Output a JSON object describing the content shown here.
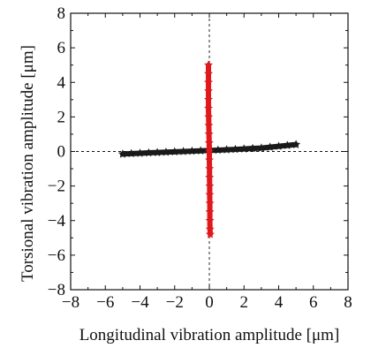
{
  "chart_data": {
    "type": "scatter",
    "xlabel": "Longitudinal vibration amplitude [μm]",
    "ylabel": "Torsional vibration amplitude [μm]",
    "xlim": [
      -8,
      8
    ],
    "ylim": [
      -8,
      8
    ],
    "xticks": [
      "−8",
      "−6",
      "−4",
      "−2",
      "0",
      "2",
      "4",
      "6",
      "8"
    ],
    "yticks": [
      "8",
      "6",
      "4",
      "2",
      "0",
      "−2",
      "−4",
      "−6",
      "−8"
    ],
    "grid": false,
    "zero_lines": "dashed",
    "series": [
      {
        "color": "#1a1a1a",
        "marker": "star",
        "x": [
          -5.0,
          -4.5,
          -4.0,
          -3.5,
          -3.0,
          -2.5,
          -2.0,
          -1.5,
          -1.0,
          -0.5,
          0.0,
          0.5,
          1.0,
          1.5,
          2.0,
          2.5,
          3.0,
          3.5,
          4.0,
          4.5,
          5.0
        ],
        "y": [
          -0.15,
          -0.12,
          -0.1,
          -0.08,
          -0.06,
          -0.04,
          -0.02,
          0.0,
          0.02,
          0.04,
          0.06,
          0.08,
          0.1,
          0.12,
          0.15,
          0.18,
          0.2,
          0.25,
          0.3,
          0.35,
          0.4
        ]
      },
      {
        "color": "#e0191d",
        "marker": "star",
        "x": [
          -0.05,
          -0.05,
          -0.05,
          -0.05,
          -0.05,
          -0.05,
          -0.04,
          -0.03,
          -0.02,
          -0.01,
          0.0,
          0.0,
          0.01,
          0.01,
          0.02,
          0.02,
          0.03,
          0.03,
          0.03,
          0.04,
          0.05
        ],
        "y": [
          5.0,
          4.5,
          4.0,
          3.5,
          3.0,
          2.5,
          2.0,
          1.5,
          1.0,
          0.5,
          0.0,
          -0.5,
          -1.0,
          -1.5,
          -2.0,
          -2.5,
          -3.0,
          -3.5,
          -4.0,
          -4.5,
          -4.8
        ]
      }
    ]
  }
}
